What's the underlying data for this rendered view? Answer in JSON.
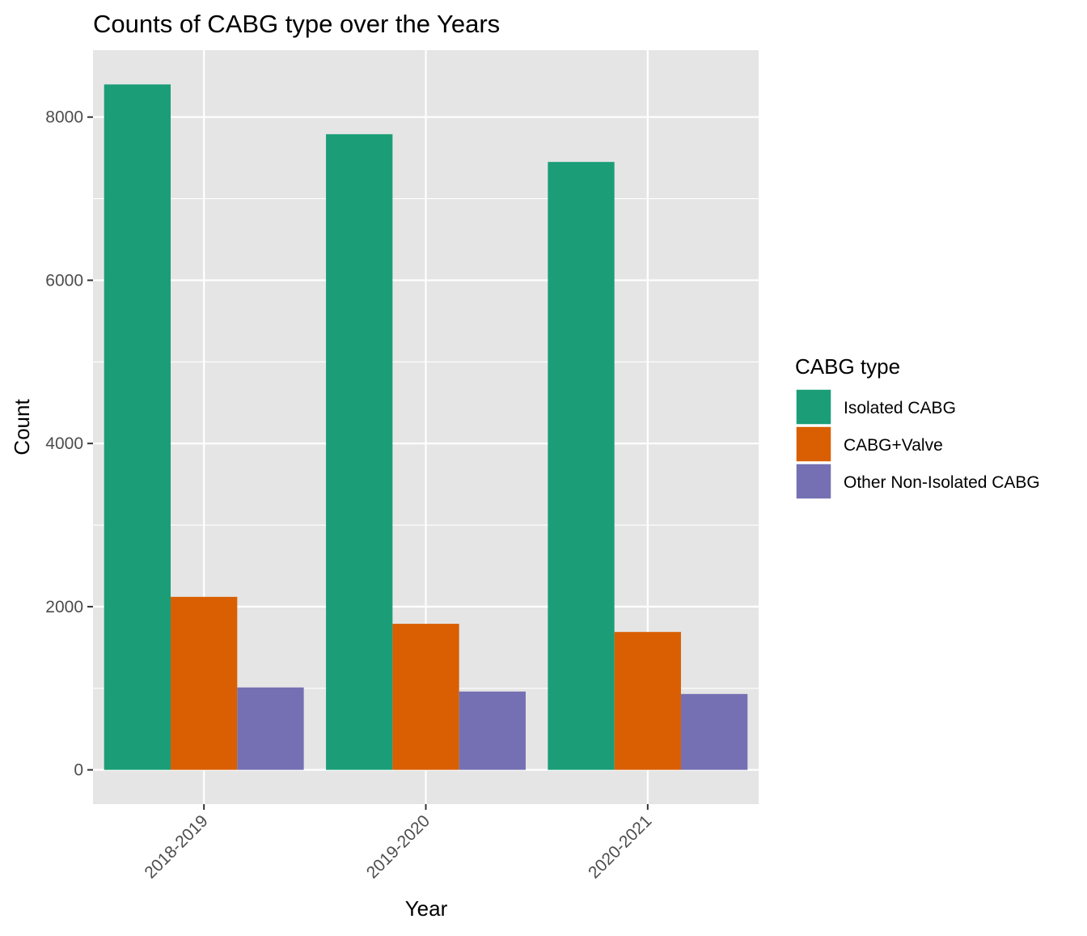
{
  "chart_data": {
    "type": "bar",
    "title": "Counts of CABG type over the Years",
    "xlabel": "Year",
    "ylabel": "Count",
    "categories": [
      "2018-2019",
      "2019-2020",
      "2020-2021"
    ],
    "series": [
      {
        "name": "Isolated CABG",
        "color": "#1B9E77",
        "values": [
          8400,
          7790,
          7450
        ]
      },
      {
        "name": "CABG+Valve",
        "color": "#D95F02",
        "values": [
          2120,
          1790,
          1690
        ]
      },
      {
        "name": "Other Non-Isolated CABG",
        "color": "#7570B3",
        "values": [
          1010,
          960,
          930
        ]
      }
    ],
    "ylim": [
      -420,
      8820
    ],
    "yticks": [
      0,
      2000,
      4000,
      6000,
      8000
    ],
    "yticks_minor": [
      1000,
      3000,
      5000,
      7000
    ],
    "grid": true,
    "legend": {
      "title": "CABG type",
      "position": "right"
    },
    "panel_background": "#E5E5E5",
    "grid_color": "#FFFFFF"
  }
}
